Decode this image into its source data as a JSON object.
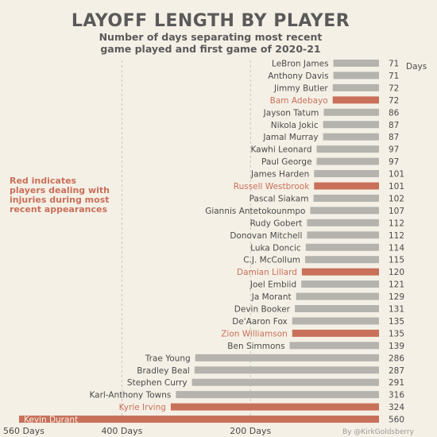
{
  "chart_data": {
    "type": "bar",
    "orientation": "horizontal",
    "title": "LAYOFF LENGTH BY PLAYER",
    "subtitle_line1": "Number of days separating most recent",
    "subtitle_line2": "game played and first game of 2020-21",
    "annotation_line1": "Red indicates",
    "annotation_line2": "players dealing with",
    "annotation_line3": "injuries during most",
    "annotation_line4": "recent appearances",
    "first_value_unit": "Days",
    "credit": "By @KirkGoldsberry",
    "axis_ticks": [
      {
        "value": 560,
        "label": "560 Days"
      },
      {
        "value": 400,
        "label": "400 Days"
      },
      {
        "value": 200,
        "label": "200 Days"
      }
    ],
    "xlim": [
      0,
      560
    ],
    "direction": "right-to-left",
    "grid": "dashed-vertical",
    "colors": {
      "normal": "#b5b3ae",
      "injured": "#c8705a",
      "injured_text": "#c8705a",
      "text": "#4a4a4a"
    },
    "players": [
      {
        "name": "LeBron James",
        "value": 71,
        "injured": false
      },
      {
        "name": "Anthony Davis",
        "value": 71,
        "injured": false
      },
      {
        "name": "Jimmy Butler",
        "value": 72,
        "injured": false
      },
      {
        "name": "Bam Adebayo",
        "value": 72,
        "injured": true
      },
      {
        "name": "Jayson Tatum",
        "value": 86,
        "injured": false
      },
      {
        "name": "Nikola Jokic",
        "value": 87,
        "injured": false
      },
      {
        "name": "Jamal Murray",
        "value": 87,
        "injured": false
      },
      {
        "name": "Kawhi Leonard",
        "value": 97,
        "injured": false
      },
      {
        "name": "Paul George",
        "value": 97,
        "injured": false
      },
      {
        "name": "James Harden",
        "value": 101,
        "injured": false
      },
      {
        "name": "Russell Westbrook",
        "value": 101,
        "injured": true
      },
      {
        "name": "Pascal Siakam",
        "value": 102,
        "injured": false
      },
      {
        "name": "Giannis Antetokounmpo",
        "value": 107,
        "injured": false
      },
      {
        "name": "Rudy Gobert",
        "value": 112,
        "injured": false
      },
      {
        "name": "Donovan Mitchell",
        "value": 112,
        "injured": false
      },
      {
        "name": "Luka Doncic",
        "value": 114,
        "injured": false
      },
      {
        "name": "C.J. McCollum",
        "value": 115,
        "injured": false
      },
      {
        "name": "Damian Lillard",
        "value": 120,
        "injured": true
      },
      {
        "name": "Joel Embiid",
        "value": 121,
        "injured": false
      },
      {
        "name": "Ja Morant",
        "value": 129,
        "injured": false
      },
      {
        "name": "Devin Booker",
        "value": 131,
        "injured": false
      },
      {
        "name": "De'Aaron Fox",
        "value": 135,
        "injured": false
      },
      {
        "name": "Zion Williamson",
        "value": 135,
        "injured": true
      },
      {
        "name": "Ben Simmons",
        "value": 139,
        "injured": false
      },
      {
        "name": "Trae Young",
        "value": 286,
        "injured": false
      },
      {
        "name": "Bradley Beal",
        "value": 287,
        "injured": false
      },
      {
        "name": "Stephen Curry",
        "value": 291,
        "injured": false
      },
      {
        "name": "Karl-Anthony Towns",
        "value": 316,
        "injured": false
      },
      {
        "name": "Kyrie Irving",
        "value": 324,
        "injured": true
      },
      {
        "name": "Kevin Durant",
        "value": 560,
        "injured": true
      }
    ]
  }
}
